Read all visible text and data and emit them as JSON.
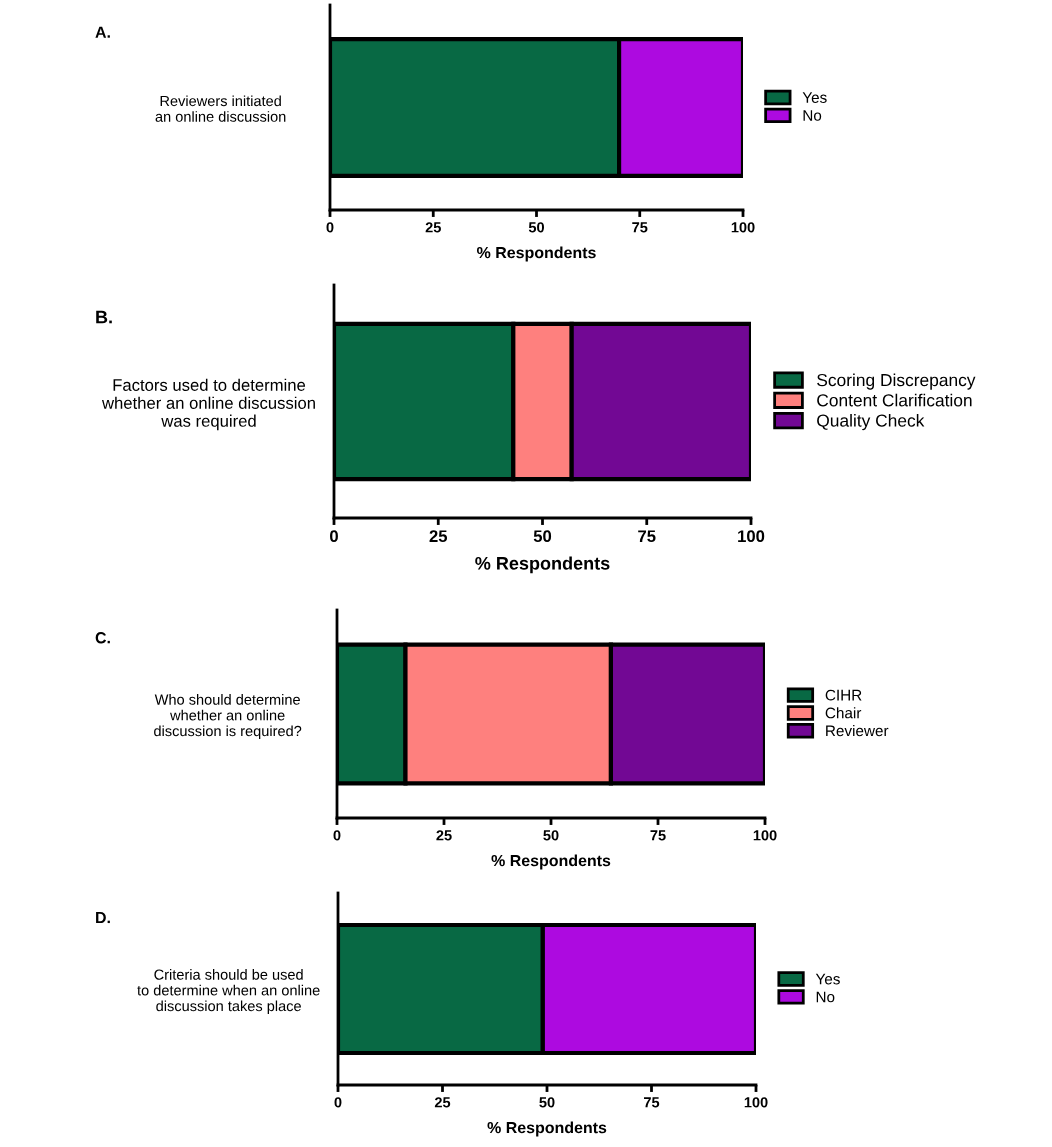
{
  "chart_data": [
    {
      "type": "bar",
      "title": "A.",
      "orientation": "horizontal",
      "stacked": true,
      "categories": [
        "Reviewers initiated\nan online discussion"
      ],
      "xlabel": "% Respondents",
      "xlim": [
        0,
        100
      ],
      "xticks": [
        0,
        25,
        50,
        75,
        100
      ],
      "legend": "right",
      "grid": false,
      "series": [
        {
          "name": "Yes",
          "color": "#086944",
          "values": [
            70
          ]
        },
        {
          "name": "No",
          "color": "#ad0ae0",
          "values": [
            30
          ]
        }
      ]
    },
    {
      "type": "bar",
      "title": "B.",
      "orientation": "horizontal",
      "stacked": true,
      "categories": [
        "Factors used to determine\nwhether an online discussion\nwas required"
      ],
      "xlabel": "% Respondents",
      "xlim": [
        0,
        100
      ],
      "xticks": [
        0,
        25,
        50,
        75,
        100
      ],
      "legend": "right",
      "grid": false,
      "series": [
        {
          "name": "Scoring Discrepancy",
          "color": "#086944",
          "values": [
            43
          ]
        },
        {
          "name": "Content Clarification",
          "color": "#fe807e",
          "values": [
            14
          ]
        },
        {
          "name": "Quality Check",
          "color": "#720894",
          "values": [
            43
          ]
        }
      ]
    },
    {
      "type": "bar",
      "title": "C.",
      "orientation": "horizontal",
      "stacked": true,
      "categories": [
        "Who should determine\nwhether an online\ndiscussion is required?"
      ],
      "xlabel": "% Respondents",
      "xlim": [
        0,
        100
      ],
      "xticks": [
        0,
        25,
        50,
        75,
        100
      ],
      "legend": "right",
      "grid": false,
      "series": [
        {
          "name": "CIHR",
          "color": "#086944",
          "values": [
            16
          ]
        },
        {
          "name": "Chair",
          "color": "#fe807e",
          "values": [
            48
          ]
        },
        {
          "name": "Reviewer",
          "color": "#720894",
          "values": [
            36
          ]
        }
      ]
    },
    {
      "type": "bar",
      "title": "D.",
      "orientation": "horizontal",
      "stacked": true,
      "categories": [
        "Criteria should be used\nto determine when an online\ndiscussion takes place"
      ],
      "xlabel": "% Respondents",
      "xlim": [
        0,
        100
      ],
      "xticks": [
        0,
        25,
        50,
        75,
        100
      ],
      "legend": "right",
      "grid": false,
      "series": [
        {
          "name": "Yes",
          "color": "#086944",
          "values": [
            49
          ]
        },
        {
          "name": "No",
          "color": "#ad0ae0",
          "values": [
            51
          ]
        }
      ]
    }
  ]
}
